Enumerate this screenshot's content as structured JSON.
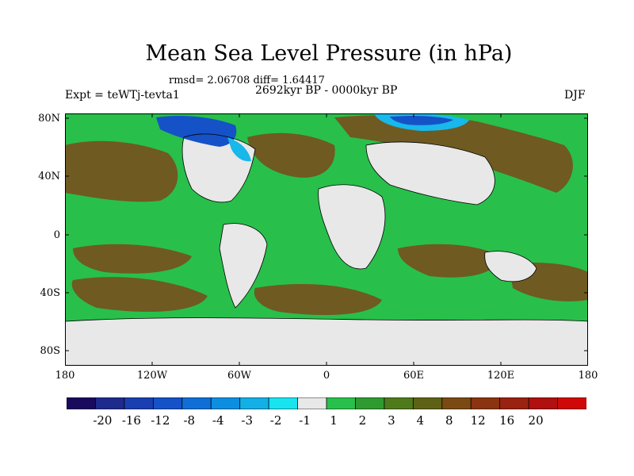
{
  "title": "Mean Sea Level Pressure (in hPa)",
  "stats": "rmsd= 2.06708 diff= 1.64417",
  "subtitle": "2692kyr BP - 0000kyr BP",
  "experiment": "Expt = teWTj-tevta1",
  "season": "DJF",
  "lat_labels": [
    "80N",
    "40N",
    "0",
    "40S",
    "80S"
  ],
  "lon_labels": [
    "180",
    "120W",
    "60W",
    "0",
    "60E",
    "120E",
    "180"
  ],
  "colorbar": {
    "colors": [
      "#1a0a5e",
      "#1e2a8c",
      "#1a3fb0",
      "#1552c8",
      "#0f6fd6",
      "#0c8fe0",
      "#12b0e6",
      "#18e4f0",
      "#e8e8e8",
      "#28c04a",
      "#2f9a30",
      "#4e7a1c",
      "#5e6216",
      "#7a4a12",
      "#8a3410",
      "#9a2210",
      "#b01010",
      "#d00808"
    ],
    "labels": [
      "-20",
      "-16",
      "-12",
      "-8",
      "-4",
      "-3",
      "-2",
      "-1",
      "1",
      "2",
      "3",
      "4",
      "8",
      "12",
      "16",
      "20"
    ]
  },
  "field_colors": {
    "land_neutral": "#e8e8e8",
    "green": "#28c04a",
    "brown": "#6f5a22",
    "dark_brown": "#5d4b1c",
    "blue": "#1552c8",
    "light_blue": "#18b8ea"
  }
}
